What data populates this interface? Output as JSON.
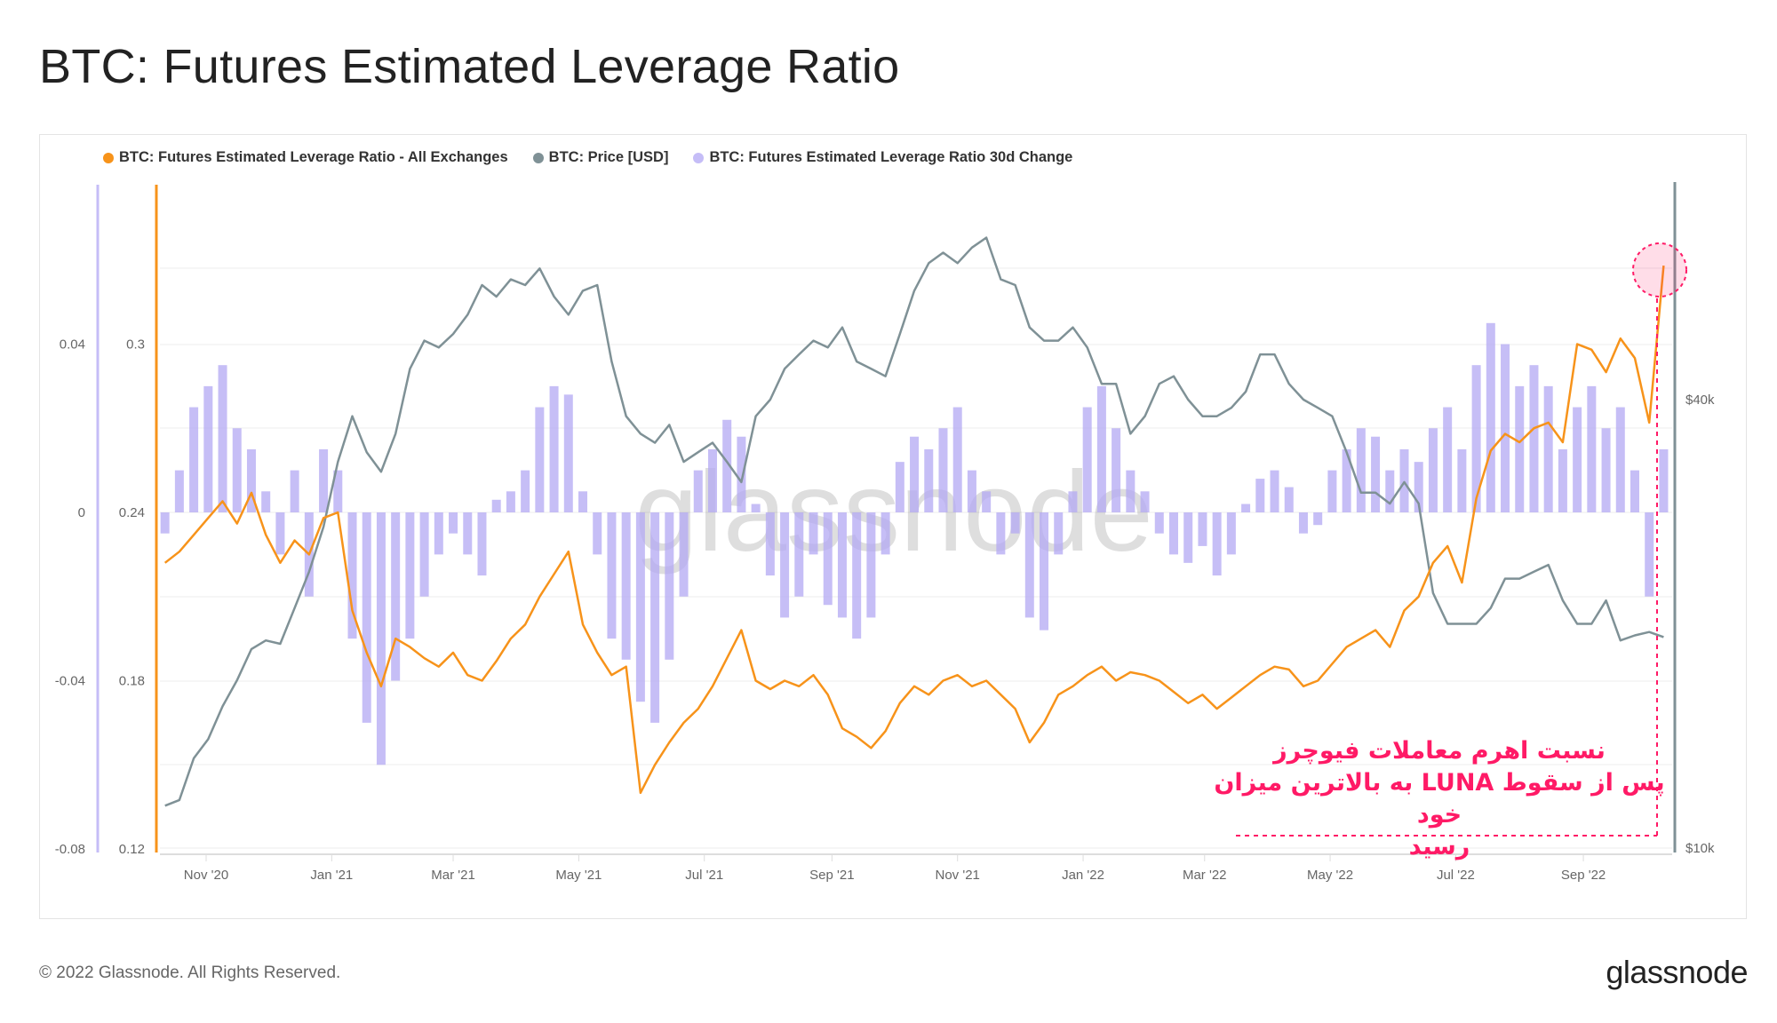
{
  "page": {
    "title": "BTC: Futures Estimated Leverage Ratio",
    "footer": "© 2022 Glassnode. All Rights Reserved.",
    "logo": "glassnode",
    "watermark": "glassnode"
  },
  "annotation": {
    "lines": [
      "نسبت اهرم معاملات فیوچرز",
      "پس از سقوط LUNA به بالاترین میزان خود",
      "رسید"
    ],
    "color": "#ff1a66"
  },
  "chart_data": {
    "type": "line",
    "title": "BTC: Futures Estimated Leverage Ratio",
    "start_date": "2020-10-12",
    "interval": "weekly",
    "legend_position": "top-left",
    "legend": [
      {
        "name": "BTC: Futures Estimated Leverage Ratio - All Exchanges",
        "color": "#f7931a"
      },
      {
        "name": "BTC: Price [USD]",
        "color": "#7f9196"
      },
      {
        "name": "BTC: Futures Estimated Leverage Ratio 30d Change",
        "color": "#c5bdf7"
      }
    ],
    "x_ticks": [
      {
        "label": "Nov '20",
        "date": "2020-11-01"
      },
      {
        "label": "Jan '21",
        "date": "2021-01-01"
      },
      {
        "label": "Mar '21",
        "date": "2021-03-01"
      },
      {
        "label": "May '21",
        "date": "2021-05-01"
      },
      {
        "label": "Jul '21",
        "date": "2021-07-01"
      },
      {
        "label": "Sep '21",
        "date": "2021-09-01"
      },
      {
        "label": "Nov '21",
        "date": "2021-11-01"
      },
      {
        "label": "Jan '22",
        "date": "2022-01-01"
      },
      {
        "label": "Mar '22",
        "date": "2022-03-01"
      },
      {
        "label": "May '22",
        "date": "2022-05-01"
      },
      {
        "label": "Jul '22",
        "date": "2022-07-01"
      },
      {
        "label": "Sep '22",
        "date": "2022-09-01"
      }
    ],
    "y_axis_change": {
      "ticks": [
        "0.04",
        "0",
        "-0.04",
        "-0.08"
      ],
      "values": [
        0.04,
        0,
        -0.04,
        -0.08
      ]
    },
    "y_axis_ratio": {
      "ticks": [
        "0.3",
        "0.24",
        "0.18",
        "0.12"
      ],
      "values": [
        0.3,
        0.24,
        0.18,
        0.12
      ]
    },
    "y_axis_price": {
      "ticks": [
        "$40k",
        "$10k"
      ],
      "values": [
        40000,
        10000
      ],
      "scale": "log"
    },
    "series": [
      {
        "name": "BTC: Futures Estimated Leverage Ratio - All Exchanges",
        "type": "line",
        "values": [
          0.222,
          0.226,
          0.232,
          0.238,
          0.244,
          0.236,
          0.247,
          0.232,
          0.222,
          0.23,
          0.225,
          0.238,
          0.24,
          0.205,
          0.19,
          0.178,
          0.195,
          0.192,
          0.188,
          0.185,
          0.19,
          0.182,
          0.18,
          0.187,
          0.195,
          0.2,
          0.21,
          0.218,
          0.226,
          0.2,
          0.19,
          0.182,
          0.185,
          0.14,
          0.15,
          0.158,
          0.165,
          0.17,
          0.178,
          0.188,
          0.198,
          0.18,
          0.177,
          0.18,
          0.178,
          0.182,
          0.175,
          0.163,
          0.16,
          0.156,
          0.162,
          0.172,
          0.178,
          0.175,
          0.18,
          0.182,
          0.178,
          0.18,
          0.175,
          0.17,
          0.158,
          0.165,
          0.175,
          0.178,
          0.182,
          0.185,
          0.18,
          0.183,
          0.182,
          0.18,
          0.176,
          0.172,
          0.175,
          0.17,
          0.174,
          0.178,
          0.182,
          0.185,
          0.184,
          0.178,
          0.18,
          0.186,
          0.192,
          0.195,
          0.198,
          0.192,
          0.205,
          0.21,
          0.222,
          0.228,
          0.215,
          0.245,
          0.262,
          0.268,
          0.265,
          0.27,
          0.272,
          0.265,
          0.3,
          0.298,
          0.29,
          0.302,
          0.295,
          0.272,
          0.328
        ]
      },
      {
        "name": "BTC: Price [USD]",
        "type": "line",
        "unit": "USD",
        "values": [
          11400,
          11600,
          13200,
          14000,
          15500,
          16800,
          18500,
          19000,
          18800,
          21000,
          23500,
          27000,
          33000,
          38000,
          34000,
          32000,
          36000,
          44000,
          48000,
          47000,
          49000,
          52000,
          57000,
          55000,
          58000,
          57000,
          60000,
          55000,
          52000,
          56000,
          57000,
          45000,
          38000,
          36000,
          35000,
          37000,
          33000,
          34000,
          35000,
          33000,
          31000,
          38000,
          40000,
          44000,
          46000,
          48000,
          47000,
          50000,
          45000,
          44000,
          43000,
          49000,
          56000,
          61000,
          63000,
          61000,
          64000,
          66000,
          58000,
          57000,
          50000,
          48000,
          48000,
          50000,
          47000,
          42000,
          42000,
          36000,
          38000,
          42000,
          43000,
          40000,
          38000,
          38000,
          39000,
          41000,
          46000,
          46000,
          42000,
          40000,
          39000,
          38000,
          34000,
          30000,
          30000,
          29000,
          31000,
          29000,
          22000,
          20000,
          20000,
          20000,
          21000,
          23000,
          23000,
          23500,
          24000,
          21500,
          20000,
          20000,
          21500,
          19000,
          19300,
          19500,
          19200
        ]
      },
      {
        "name": "BTC: Futures Estimated Leverage Ratio 30d Change",
        "type": "bar",
        "values": [
          -0.005,
          0.01,
          0.025,
          0.03,
          0.035,
          0.02,
          0.015,
          0.005,
          -0.01,
          0.01,
          -0.02,
          0.015,
          0.01,
          -0.03,
          -0.05,
          -0.06,
          -0.04,
          -0.03,
          -0.02,
          -0.01,
          -0.005,
          -0.01,
          -0.015,
          0.003,
          0.005,
          0.01,
          0.025,
          0.03,
          0.028,
          0.005,
          -0.01,
          -0.03,
          -0.035,
          -0.045,
          -0.05,
          -0.035,
          -0.02,
          0.01,
          0.015,
          0.022,
          0.018,
          0.002,
          -0.015,
          -0.025,
          -0.02,
          -0.01,
          -0.022,
          -0.025,
          -0.03,
          -0.025,
          -0.01,
          0.012,
          0.018,
          0.015,
          0.02,
          0.025,
          0.01,
          0.005,
          -0.01,
          -0.005,
          -0.025,
          -0.028,
          -0.01,
          0.005,
          0.025,
          0.03,
          0.02,
          0.01,
          0.005,
          -0.005,
          -0.01,
          -0.012,
          -0.008,
          -0.015,
          -0.01,
          0.002,
          0.008,
          0.01,
          0.006,
          -0.005,
          -0.003,
          0.01,
          0.015,
          0.02,
          0.018,
          0.01,
          0.015,
          0.012,
          0.02,
          0.025,
          0.015,
          0.035,
          0.045,
          0.04,
          0.03,
          0.035,
          0.03,
          0.015,
          0.025,
          0.03,
          0.02,
          0.025,
          0.01,
          -0.02,
          0.015
        ]
      }
    ]
  }
}
